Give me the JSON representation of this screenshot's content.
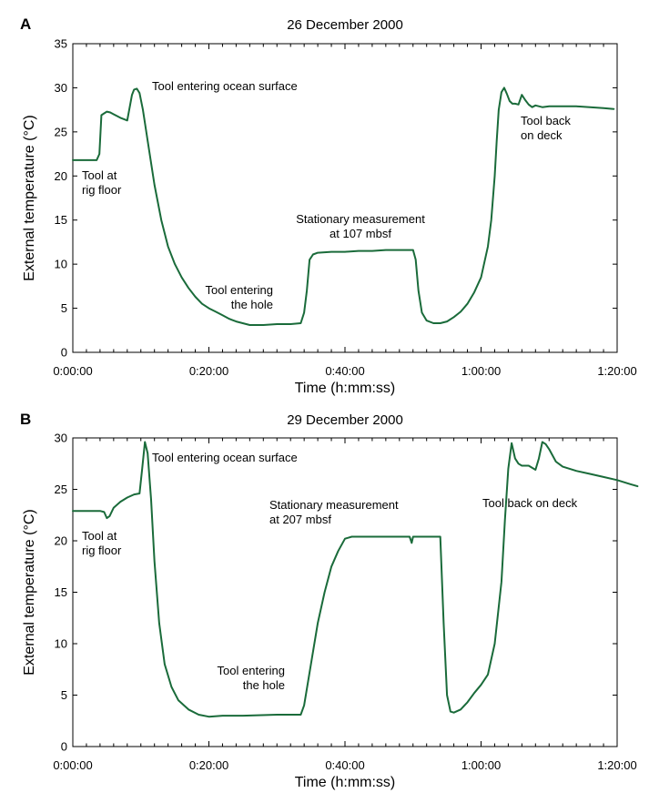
{
  "chart_data": [
    {
      "type": "line",
      "panel_label": "A",
      "title": "26 December 2000",
      "xlabel": "Time (h:mm:ss)",
      "ylabel": "External temperature (°C)",
      "xlim_min": [
        0,
        80
      ],
      "ylim": [
        0,
        35
      ],
      "xticks": [
        0,
        20,
        40,
        60,
        80
      ],
      "xtick_labels": [
        "0:00:00",
        "0:20:00",
        "0:40:00",
        "1:00:00",
        "1:20:00"
      ],
      "yticks": [
        0,
        5,
        10,
        15,
        20,
        25,
        30,
        35
      ],
      "ytick_labels": [
        "0",
        "5",
        "10",
        "15",
        "20",
        "25",
        "30",
        "35"
      ],
      "grid": false,
      "line_color": "#1a6b3a",
      "series": [
        {
          "x_min": [
            0,
            2,
            3.5,
            3.9,
            4.2,
            4.6,
            5,
            5.5,
            6,
            7,
            8,
            8.7,
            9,
            9.4,
            9.8,
            10.3,
            11,
            12,
            13,
            14,
            15,
            16,
            17,
            18,
            19,
            20,
            21,
            22,
            23,
            24,
            26,
            28,
            30,
            32,
            33.5,
            34,
            34.4,
            34.8,
            35.3,
            36,
            38,
            40,
            42,
            44,
            46,
            48,
            50,
            50.4,
            50.8,
            51.3,
            52,
            53,
            54,
            55,
            56,
            57,
            58,
            59,
            60,
            61,
            61.5,
            62,
            62.3,
            62.6,
            63,
            63.4,
            63.8,
            64.2,
            64.6,
            65,
            65.5,
            66,
            66.5,
            67,
            67.5,
            68,
            69,
            70,
            72,
            74,
            76,
            78,
            79.5
          ],
          "y": [
            21.8,
            21.8,
            21.8,
            22.5,
            26.9,
            27.1,
            27.3,
            27.2,
            27,
            26.6,
            26.3,
            29.2,
            29.8,
            29.9,
            29.4,
            27.5,
            24,
            19,
            15,
            12,
            10,
            8.5,
            7.3,
            6.3,
            5.5,
            5,
            4.6,
            4.2,
            3.8,
            3.5,
            3.1,
            3.1,
            3.2,
            3.2,
            3.3,
            4.5,
            7,
            10.5,
            11.1,
            11.3,
            11.4,
            11.4,
            11.5,
            11.5,
            11.6,
            11.6,
            11.6,
            10.5,
            7,
            4.5,
            3.6,
            3.3,
            3.3,
            3.5,
            4,
            4.6,
            5.5,
            6.8,
            8.5,
            12,
            15,
            20,
            24,
            27.5,
            29.5,
            30,
            29.3,
            28.5,
            28.2,
            28.2,
            28.1,
            29.2,
            28.6,
            28.1,
            27.8,
            28,
            27.8,
            27.9,
            27.9,
            27.9,
            27.8,
            27.7,
            27.6
          ]
        }
      ],
      "annotations": [
        {
          "lines": [
            "Tool entering ocean surface"
          ]
        },
        {
          "lines": [
            "Tool at",
            "rig floor"
          ]
        },
        {
          "lines": [
            "Stationary measurement",
            "at 107 mbsf"
          ]
        },
        {
          "lines": [
            "Tool entering",
            "the hole"
          ]
        },
        {
          "lines": [
            "Tool back",
            "on deck"
          ]
        }
      ]
    },
    {
      "type": "line",
      "panel_label": "B",
      "title": "29 December 2000",
      "xlabel": "Time (h:mm:ss)",
      "ylabel": "External temperature (°C)",
      "xlim_min": [
        0,
        80
      ],
      "ylim": [
        0,
        30
      ],
      "xticks": [
        0,
        20,
        40,
        60,
        80
      ],
      "xtick_labels": [
        "0:00:00",
        "0:20:00",
        "0:40:00",
        "1:00:00",
        "1:20:00"
      ],
      "yticks": [
        0,
        5,
        10,
        15,
        20,
        25,
        30
      ],
      "ytick_labels": [
        "0",
        "5",
        "10",
        "15",
        "20",
        "25",
        "30"
      ],
      "grid": false,
      "line_color": "#1a6b3a",
      "series": [
        {
          "x_min": [
            0,
            2,
            4,
            4.6,
            5,
            5.4,
            6,
            7,
            8,
            9,
            9.8,
            10.2,
            10.6,
            11,
            11.5,
            12,
            12.7,
            13.5,
            14.5,
            15.5,
            17,
            18.5,
            20,
            22,
            25,
            30,
            33.5,
            34,
            35,
            36,
            37,
            38,
            39,
            40,
            41,
            42,
            45,
            48,
            49.2,
            49.5,
            49.8,
            50,
            52,
            54,
            54.5,
            55,
            55.5,
            56,
            57,
            58,
            59,
            60,
            61,
            62,
            63,
            63.5,
            64,
            64.5,
            65,
            65.5,
            66,
            67,
            68,
            68.5,
            69,
            69.5,
            70,
            71,
            72,
            74,
            76,
            78,
            80,
            82,
            83
          ],
          "y": [
            22.9,
            22.9,
            22.9,
            22.8,
            22.2,
            22.4,
            23.2,
            23.8,
            24.2,
            24.5,
            24.6,
            27,
            29.6,
            28.5,
            24,
            18,
            12,
            8,
            5.8,
            4.5,
            3.6,
            3.1,
            2.9,
            3,
            3,
            3.1,
            3.1,
            4,
            8,
            12,
            15,
            17.5,
            19,
            20.2,
            20.4,
            20.4,
            20.4,
            20.4,
            20.4,
            20.4,
            19.8,
            20.4,
            20.4,
            20.4,
            12,
            5,
            3.4,
            3.3,
            3.6,
            4.3,
            5.2,
            6,
            7,
            10,
            16,
            22,
            27,
            29.5,
            28,
            27.5,
            27.3,
            27.3,
            26.9,
            28,
            29.6,
            29.4,
            28.9,
            27.7,
            27.2,
            26.8,
            26.5,
            26.2,
            25.9,
            25.5,
            25.3
          ]
        }
      ],
      "annotations": [
        {
          "lines": [
            "Tool entering ocean surface"
          ]
        },
        {
          "lines": [
            "Tool at",
            "rig floor"
          ]
        },
        {
          "lines": [
            "Stationary measurement",
            "at 207 mbsf"
          ]
        },
        {
          "lines": [
            "Tool entering",
            "the hole"
          ]
        },
        {
          "lines": [
            "Tool back on deck"
          ]
        }
      ]
    }
  ]
}
